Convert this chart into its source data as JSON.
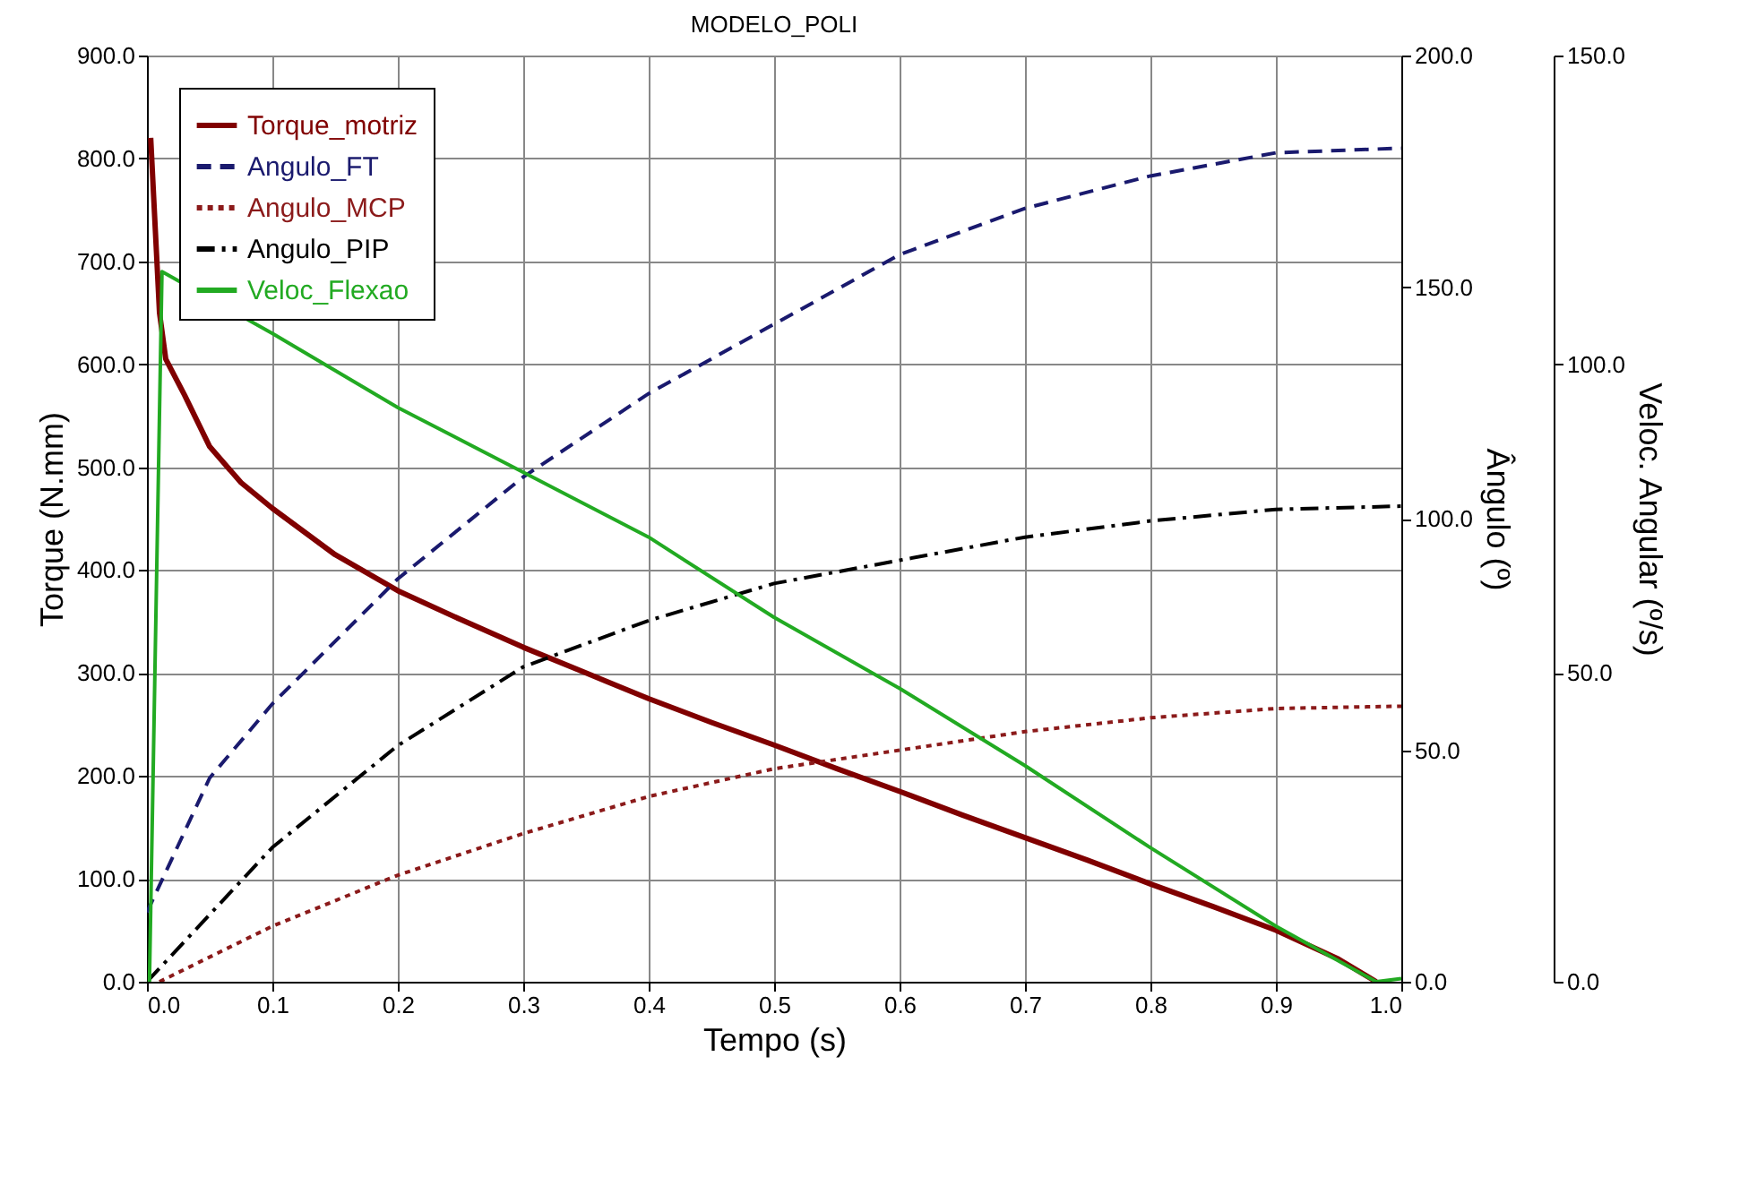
{
  "chart_data": {
    "type": "line",
    "title": "MODELO_POLI",
    "xlabel": "Tempo (s)",
    "ylabel": "Torque (N.mm)",
    "y2label": "Ângulo (º)",
    "y3label": "Veloc. Angular (º/s)",
    "xlim": [
      0,
      1
    ],
    "xticks": [
      {
        "value": 0,
        "label": "0.0"
      },
      {
        "value": 0.1,
        "label": "0.1"
      },
      {
        "value": 0.2,
        "label": "0.2"
      },
      {
        "value": 0.3,
        "label": "0.3"
      },
      {
        "value": 0.4,
        "label": "0.4"
      },
      {
        "value": 0.5,
        "label": "0.5"
      },
      {
        "value": 0.6,
        "label": "0.6"
      },
      {
        "value": 0.7,
        "label": "0.7"
      },
      {
        "value": 0.8,
        "label": "0.8"
      },
      {
        "value": 0.9,
        "label": "0.9"
      },
      {
        "value": 1,
        "label": "1.0"
      }
    ],
    "ylim": [
      0,
      900
    ],
    "yticks": [
      {
        "value": 0,
        "label": "0.0"
      },
      {
        "value": 100,
        "label": "100.0"
      },
      {
        "value": 200,
        "label": "200.0"
      },
      {
        "value": 300,
        "label": "300.0"
      },
      {
        "value": 400,
        "label": "400.0"
      },
      {
        "value": 500,
        "label": "500.0"
      },
      {
        "value": 600,
        "label": "600.0"
      },
      {
        "value": 700,
        "label": "700.0"
      },
      {
        "value": 800,
        "label": "800.0"
      },
      {
        "value": 900,
        "label": "900.0"
      }
    ],
    "y2lim": [
      0,
      200
    ],
    "y2ticks": [
      {
        "value": 0,
        "label": "0.0"
      },
      {
        "value": 50,
        "label": "50.0"
      },
      {
        "value": 100,
        "label": "100.0"
      },
      {
        "value": 150,
        "label": "150.0"
      },
      {
        "value": 200,
        "label": "200.0"
      }
    ],
    "y3lim": [
      0,
      150
    ],
    "y3ticks": [
      {
        "value": 0,
        "label": "0.0"
      },
      {
        "value": 50,
        "label": "50.0"
      },
      {
        "value": 100,
        "label": "100.0"
      },
      {
        "value": 150,
        "label": "150.0"
      }
    ],
    "grid": true,
    "legend": "top left",
    "series": [
      {
        "name": "Torque_motriz",
        "color": "#800000",
        "line_style": "solid",
        "x": [
          0.003,
          0.01,
          0.015,
          0.03,
          0.05,
          0.075,
          0.1,
          0.15,
          0.2,
          0.25,
          0.3,
          0.35,
          0.4,
          0.45,
          0.5,
          0.55,
          0.6,
          0.65,
          0.7,
          0.75,
          0.8,
          0.85,
          0.9,
          0.95,
          0.98
        ],
        "values": [
          820,
          650,
          605,
          570,
          520,
          485,
          460,
          415,
          380,
          352,
          325,
          300,
          275,
          252,
          230,
          207,
          185,
          162,
          140,
          118,
          95,
          73,
          50,
          22,
          0
        ]
      },
      {
        "name": "Angulo_FT",
        "color": "#1a1a6e",
        "line_style": "dashed",
        "axis": "y2",
        "x": [
          0,
          0.05,
          0.1,
          0.2,
          0.3,
          0.4,
          0.5,
          0.6,
          0.7,
          0.8,
          0.9,
          1
        ],
        "values": [
          15,
          44,
          60,
          87,
          109,
          127,
          142,
          157,
          167,
          174,
          179,
          180
        ]
      },
      {
        "name": "Angulo_MCP",
        "color": "#8b1a1a",
        "line_style": "dotted",
        "axis": "y2",
        "x": [
          0.01,
          0.1,
          0.2,
          0.3,
          0.4,
          0.5,
          0.6,
          0.7,
          0.8,
          0.9,
          1
        ],
        "values": [
          0,
          12,
          23,
          32,
          40,
          46,
          50,
          54,
          57,
          59,
          59.5
        ]
      },
      {
        "name": "Angulo_PIP",
        "color": "#000000",
        "line_style": "dashdot",
        "axis": "y2",
        "x": [
          0,
          0.1,
          0.2,
          0.3,
          0.4,
          0.5,
          0.6,
          0.7,
          0.8,
          0.9,
          1
        ],
        "values": [
          0,
          29,
          51,
          68,
          78,
          86,
          91,
          96,
          99.5,
          102,
          102.7
        ]
      },
      {
        "name": "Veloc_Flexao",
        "color": "#22aa22",
        "line_style": "solid",
        "axis": "y3",
        "x": [
          0.002,
          0.012,
          0.1,
          0.2,
          0.3,
          0.4,
          0.5,
          0.6,
          0.7,
          0.8,
          0.9,
          0.98,
          1
        ],
        "values": [
          0,
          115,
          105,
          93,
          82.5,
          72,
          59,
          47.5,
          35,
          21.7,
          9,
          0,
          0.5
        ]
      }
    ]
  }
}
